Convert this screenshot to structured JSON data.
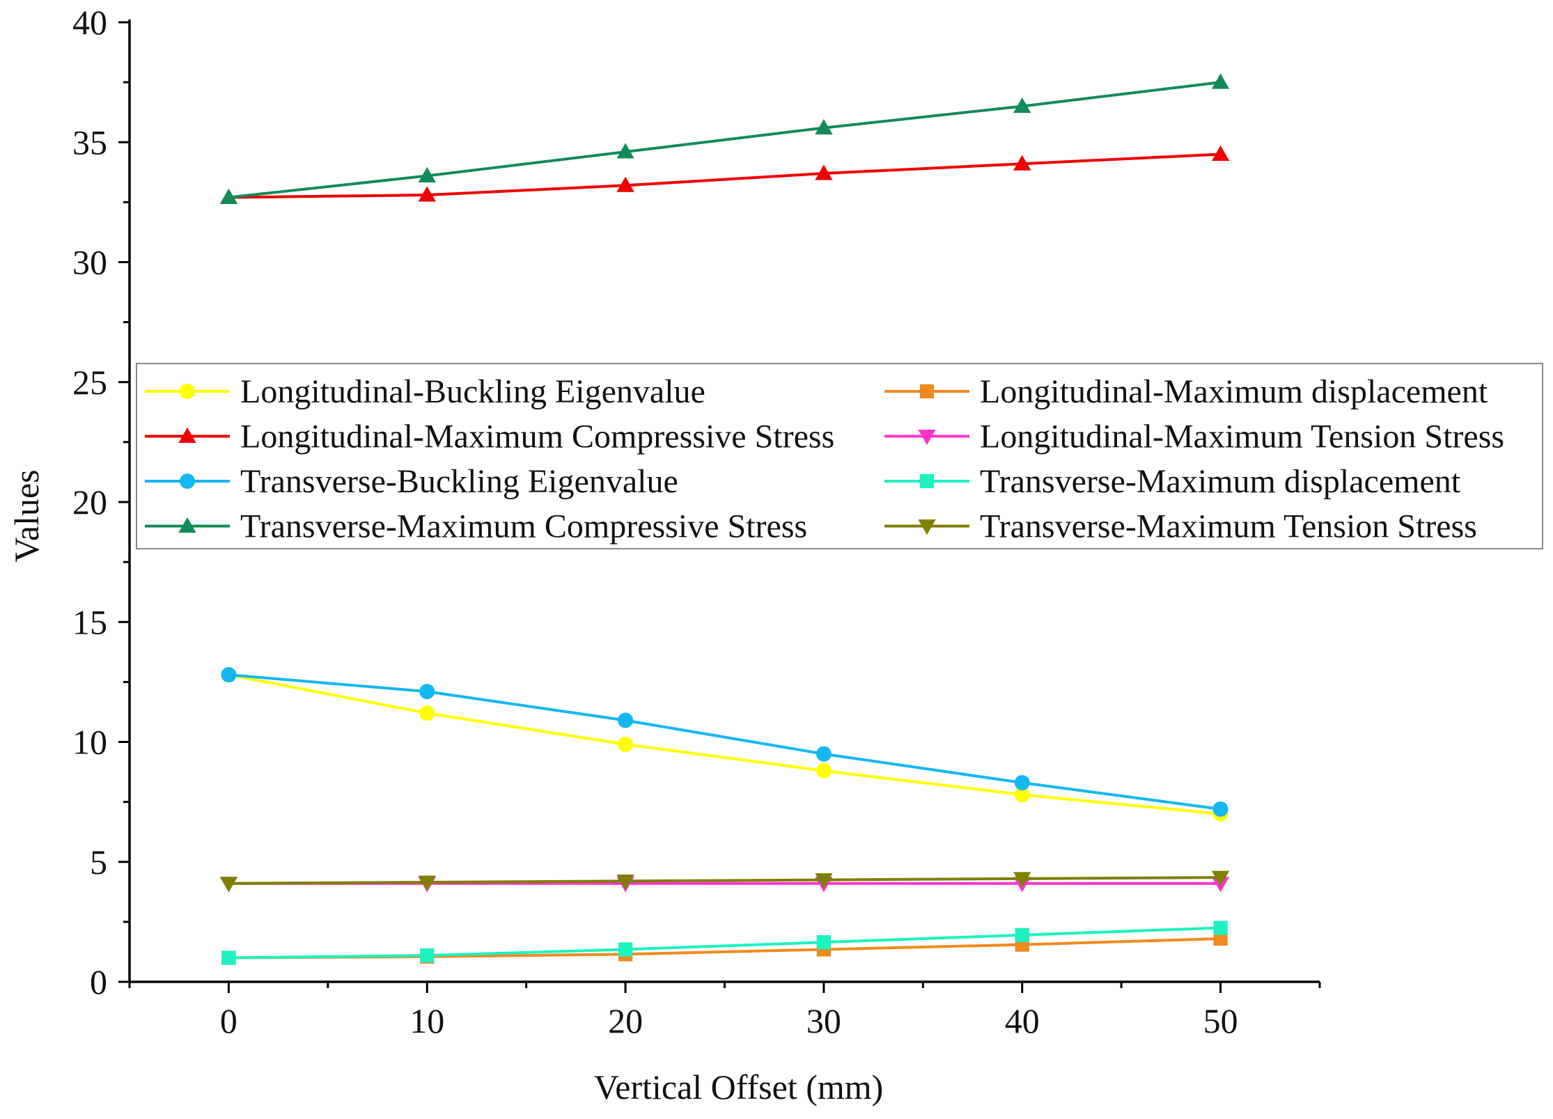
{
  "chart_data": {
    "type": "line",
    "title": "",
    "xlabel": "Vertical Offset (mm)",
    "ylabel": "Values",
    "x": [
      0,
      10,
      20,
      30,
      40,
      50
    ],
    "xlim": [
      -5,
      55
    ],
    "ylim": [
      0,
      40
    ],
    "xticks": [
      0,
      10,
      20,
      30,
      40,
      50
    ],
    "yticks": [
      0,
      5,
      10,
      15,
      20,
      25,
      30,
      35,
      40
    ],
    "grid": false,
    "legend_position": "center",
    "series": [
      {
        "name": "Longitudinal-Buckling Eigenvalue",
        "color": "#FFFF00",
        "marker": "circle",
        "values": [
          12.8,
          11.2,
          9.9,
          8.8,
          7.8,
          7.0
        ]
      },
      {
        "name": "Longitudinal-Maximum displacement",
        "color": "#F08A1E",
        "marker": "square",
        "values": [
          1.0,
          1.05,
          1.15,
          1.35,
          1.55,
          1.8
        ]
      },
      {
        "name": "Longitudinal-Maximum Compressive Stress",
        "color": "#EE0000",
        "marker": "triangle-up",
        "values": [
          32.7,
          32.8,
          33.2,
          33.7,
          34.1,
          34.5
        ]
      },
      {
        "name": "Longitudinal-Maximum Tension Stress",
        "color": "#FF33CC",
        "marker": "triangle-down",
        "values": [
          4.1,
          4.1,
          4.1,
          4.1,
          4.1,
          4.1
        ]
      },
      {
        "name": "Transverse-Buckling Eigenvalue",
        "color": "#14B7F0",
        "marker": "circle",
        "values": [
          12.8,
          12.1,
          10.9,
          9.5,
          8.3,
          7.2
        ]
      },
      {
        "name": "Transverse-Maximum displacement",
        "color": "#1DF2C0",
        "marker": "square",
        "values": [
          1.0,
          1.1,
          1.35,
          1.65,
          1.95,
          2.25
        ]
      },
      {
        "name": "Transverse-Maximum Compressive Stress",
        "color": "#138A5A",
        "marker": "triangle-up",
        "values": [
          32.7,
          33.6,
          34.6,
          35.6,
          36.5,
          37.5
        ]
      },
      {
        "name": "Transverse-Maximum Tension Stress",
        "color": "#7F7F00",
        "marker": "triangle-down",
        "values": [
          4.1,
          4.15,
          4.2,
          4.25,
          4.3,
          4.35
        ]
      }
    ]
  }
}
